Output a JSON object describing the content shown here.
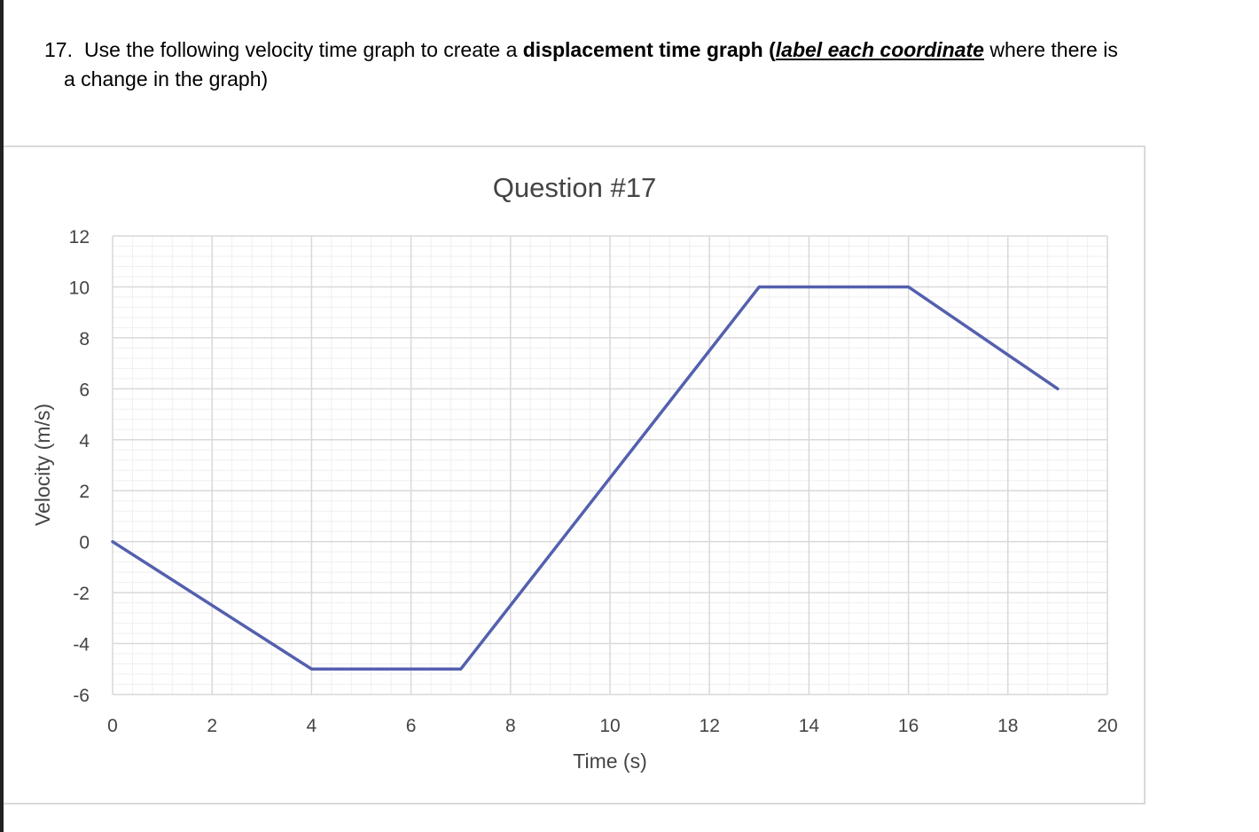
{
  "question": {
    "number": "17.",
    "text_before": "Use the following velocity time graph to create a ",
    "bold_text": "displacement time graph",
    "paren_open": " (",
    "emph_text": "label each coordinate",
    "text_after": " where there is",
    "line2": "a change in the graph)"
  },
  "chart_data": {
    "type": "line",
    "title": "Question #17",
    "xlabel": "Time (s)",
    "ylabel": "Velocity (m/s)",
    "xlim": [
      0,
      20
    ],
    "ylim": [
      -6,
      12
    ],
    "x_ticks": [
      0,
      2,
      4,
      6,
      8,
      10,
      12,
      14,
      16,
      18,
      20
    ],
    "y_ticks": [
      -6,
      -4,
      -2,
      0,
      2,
      4,
      6,
      8,
      10,
      12
    ],
    "grid": true,
    "series": [
      {
        "x": [
          0,
          4,
          7,
          13,
          16,
          19
        ],
        "y": [
          0,
          -5,
          -5,
          10,
          10,
          6
        ]
      }
    ],
    "line_color": "#5460ae",
    "grid_major_color": "#d9d9d9",
    "grid_minor_color": "#efefef"
  }
}
